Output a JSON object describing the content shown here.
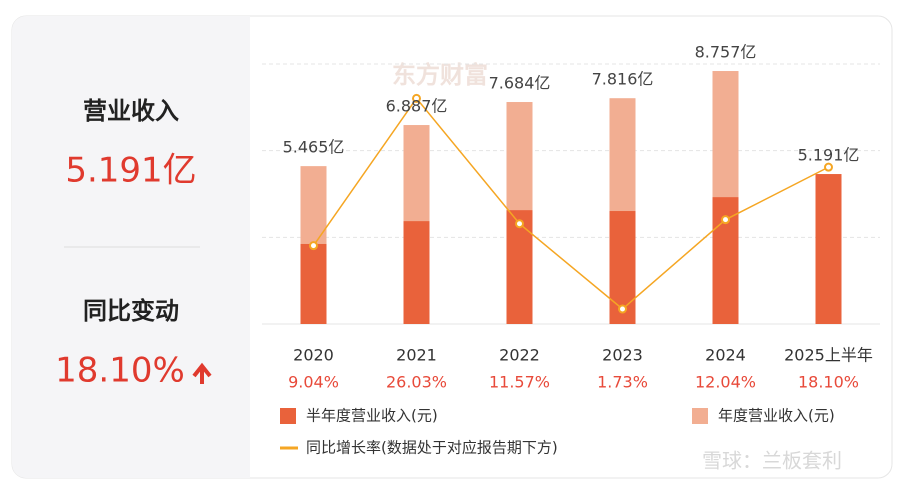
{
  "summary": {
    "revenue_label": "营业收入",
    "revenue_value": "5.191亿",
    "change_label": "同比变动",
    "change_value": "18.10%"
  },
  "watermarks": [
    "东方财富",
    "雪球：兰板套利"
  ],
  "chart_data": {
    "type": "bar",
    "categories": [
      "2020",
      "2021",
      "2022",
      "2023",
      "2024",
      "2025上半年"
    ],
    "ylim": [
      0,
      9
    ],
    "yticks": [
      0,
      3,
      6,
      9
    ],
    "grid": true,
    "y2lim": [
      0,
      30
    ],
    "series": [
      {
        "name": "半年度营业收入(元)",
        "color": "#e9623b",
        "values": [
          2.77,
          3.56,
          3.94,
          3.91,
          4.39,
          5.191
        ],
        "value_labels": [
          null,
          null,
          null,
          null,
          null,
          "5.191亿"
        ]
      },
      {
        "name": "年度营业收入(元)",
        "color": "#f2ae92",
        "values": [
          5.465,
          6.887,
          7.684,
          7.816,
          8.757,
          null
        ],
        "value_labels": [
          "5.465亿",
          "6.887亿",
          "7.684亿",
          "7.816亿",
          "8.757亿",
          null
        ]
      },
      {
        "name": "同比增长率(数据处于对应报告期下方)",
        "type": "line",
        "axis": "y2",
        "color": "#f5a623",
        "values": [
          9.04,
          26.03,
          11.57,
          1.73,
          12.04,
          18.1
        ],
        "value_labels": [
          "9.04%",
          "26.03%",
          "11.57%",
          "1.73%",
          "12.04%",
          "18.10%"
        ]
      }
    ]
  }
}
